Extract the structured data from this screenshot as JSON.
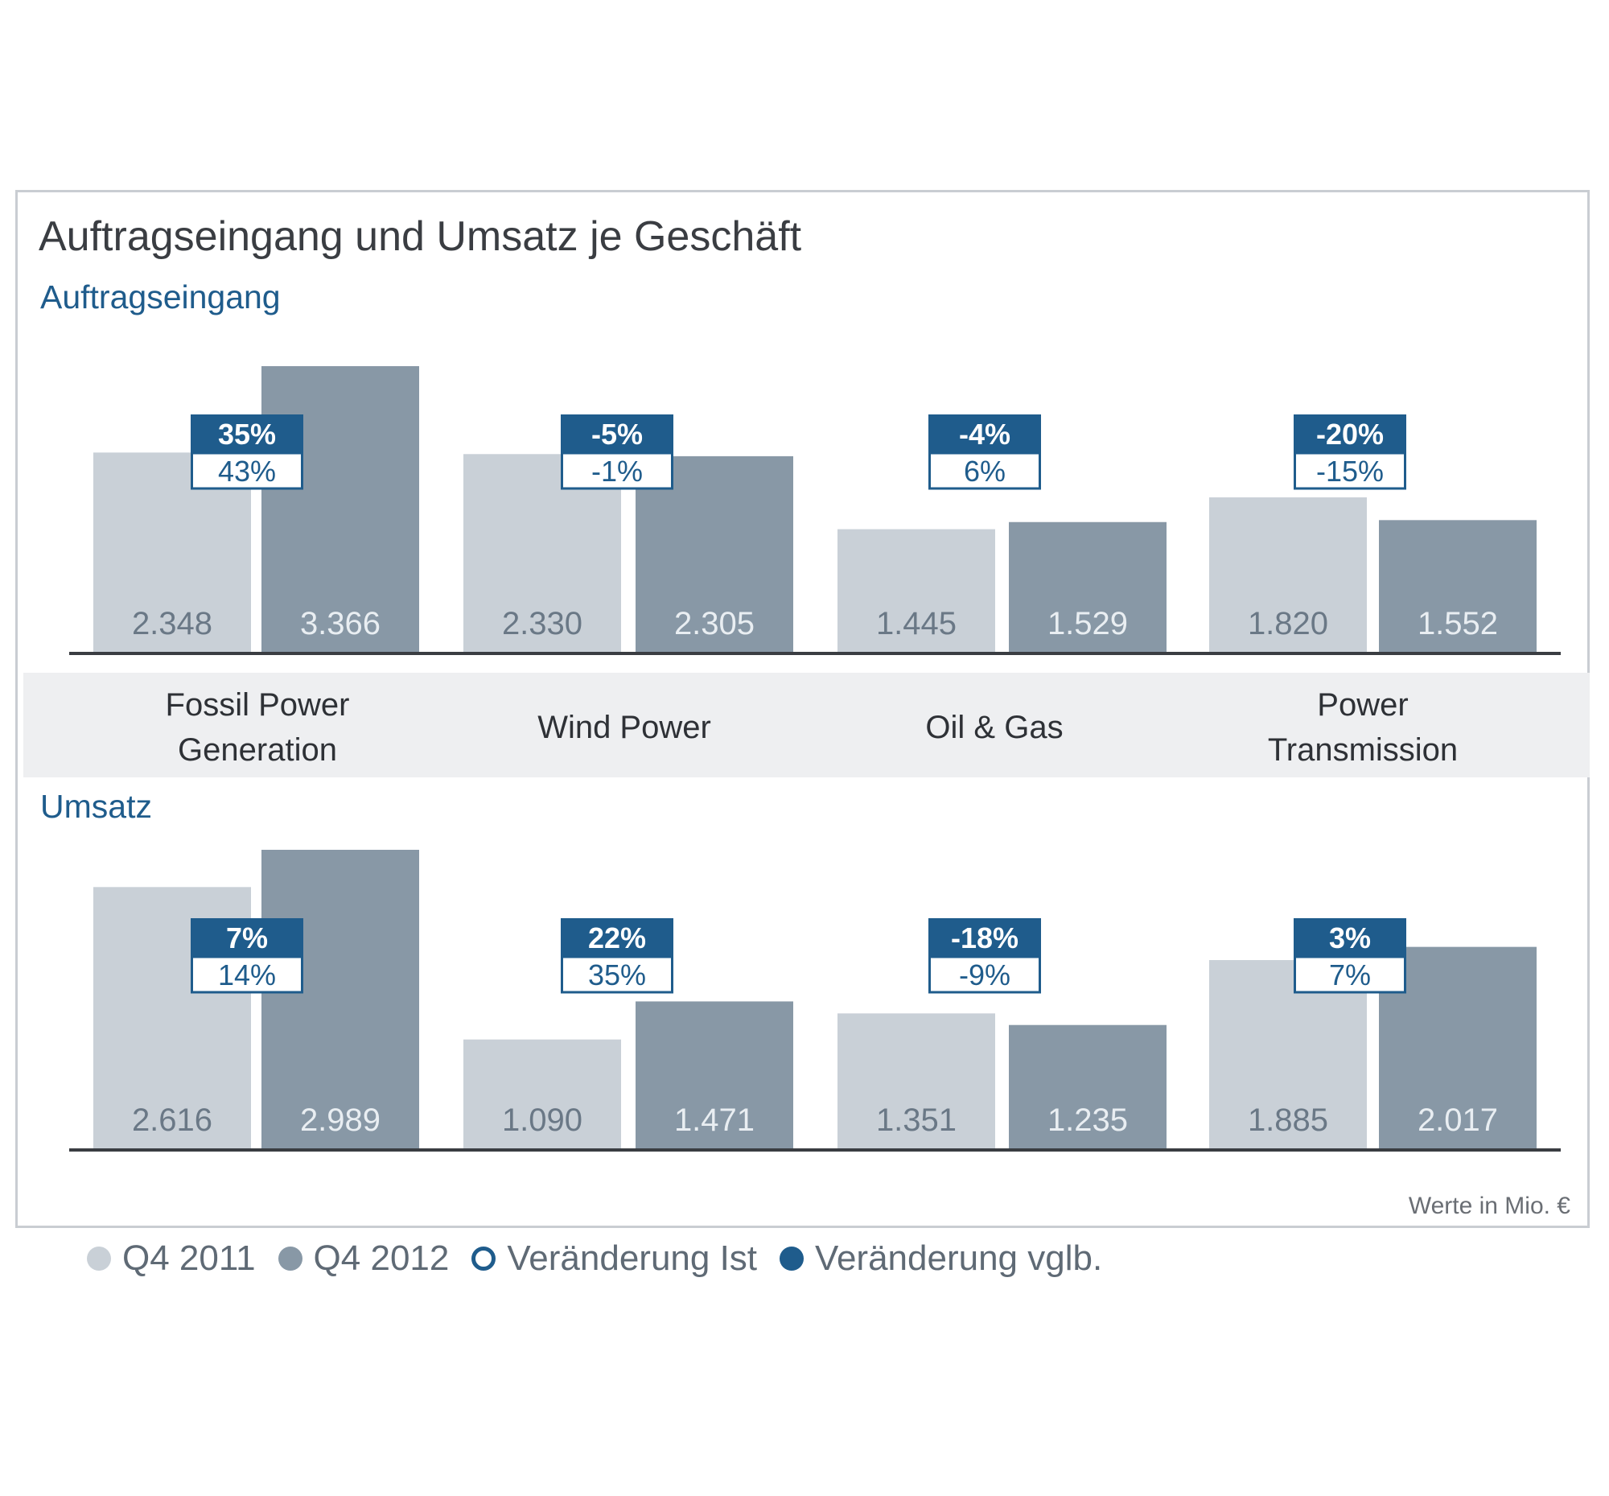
{
  "title": "Auftragseingang und Umsatz je Geschäft",
  "unit_note": "Werte in Mio. €",
  "categories": [
    {
      "lines": [
        "Fossil Power",
        "Generation"
      ]
    },
    {
      "lines": [
        "Wind Power"
      ]
    },
    {
      "lines": [
        "Oil & Gas"
      ]
    },
    {
      "lines": [
        "Power",
        "Transmission"
      ]
    }
  ],
  "legend": [
    {
      "label": "Q4 2011",
      "style": "filled",
      "color": "#c9d0d7"
    },
    {
      "label": "Q4 2012",
      "style": "filled",
      "color": "#8898a6"
    },
    {
      "label": "Veränderung Ist",
      "style": "outline",
      "color": "#1f5c8c"
    },
    {
      "label": "Veränderung vglb.",
      "style": "filled",
      "color": "#1f5c8c"
    }
  ],
  "colors": {
    "q4_2011": "#c9d0d7",
    "q4_2012": "#8898a6",
    "accent": "#1f5c8c",
    "axis": "#3a3d42"
  },
  "chart_data": [
    {
      "type": "bar",
      "title": "Auftragseingang",
      "categories": [
        "Fossil Power Generation",
        "Wind Power",
        "Oil & Gas",
        "Power Transmission"
      ],
      "series": [
        {
          "name": "Q4 2011",
          "values": [
            2348,
            2330,
            1445,
            1820
          ],
          "labels": [
            "2.348",
            "2.330",
            "1.445",
            "1.820"
          ]
        },
        {
          "name": "Q4 2012",
          "values": [
            3366,
            2305,
            1529,
            1552
          ],
          "labels": [
            "3.366",
            "2.305",
            "1.529",
            "1.552"
          ]
        }
      ],
      "change_comparable": [
        "35%",
        "-5%",
        "-4%",
        "-20%"
      ],
      "change_actual": [
        "43%",
        "-1%",
        "6%",
        "-15%"
      ],
      "ylim": [
        0,
        3366
      ]
    },
    {
      "type": "bar",
      "title": "Umsatz",
      "categories": [
        "Fossil Power Generation",
        "Wind Power",
        "Oil & Gas",
        "Power Transmission"
      ],
      "series": [
        {
          "name": "Q4 2011",
          "values": [
            2616,
            1090,
            1351,
            1885
          ],
          "labels": [
            "2.616",
            "1.090",
            "1.351",
            "1.885"
          ]
        },
        {
          "name": "Q4 2012",
          "values": [
            2989,
            1471,
            1235,
            2017
          ],
          "labels": [
            "2.989",
            "1.471",
            "1.235",
            "2.017"
          ]
        }
      ],
      "change_comparable": [
        "7%",
        "22%",
        "-18%",
        "3%"
      ],
      "change_actual": [
        "14%",
        "35%",
        "-9%",
        "7%"
      ],
      "ylim": [
        0,
        2989
      ]
    }
  ]
}
